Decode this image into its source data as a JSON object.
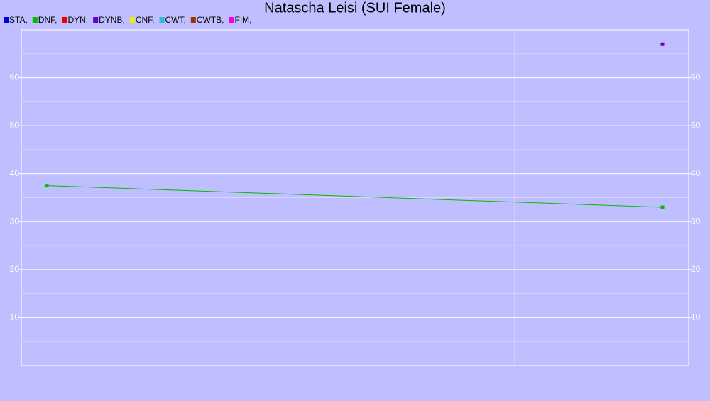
{
  "chart_data": {
    "type": "line",
    "title": "Natascha Leisi (SUI Female)",
    "categories": [
      null,
      null
    ],
    "series": [
      {
        "name": "STA,",
        "color": "#0000dd",
        "values": [
          null,
          null
        ]
      },
      {
        "name": "DNF,",
        "color": "#00bb00",
        "values": [
          37.5,
          33
        ]
      },
      {
        "name": "DYN,",
        "color": "#ee0000",
        "values": [
          null,
          null
        ]
      },
      {
        "name": "DYNB,",
        "color": "#6600cc",
        "values": [
          null,
          67
        ]
      },
      {
        "name": "CNF,",
        "color": "#eeee00",
        "values": [
          null,
          null
        ]
      },
      {
        "name": "CWT,",
        "color": "#33bbcc",
        "values": [
          null,
          null
        ]
      },
      {
        "name": "CWTB,",
        "color": "#993300",
        "values": [
          null,
          null
        ]
      },
      {
        "name": "FIM,",
        "color": "#ee00ee",
        "values": [
          null,
          null
        ]
      }
    ],
    "ylim": [
      0,
      70
    ],
    "yticks": [
      10,
      20,
      30,
      40,
      50,
      60
    ],
    "grid": true
  }
}
